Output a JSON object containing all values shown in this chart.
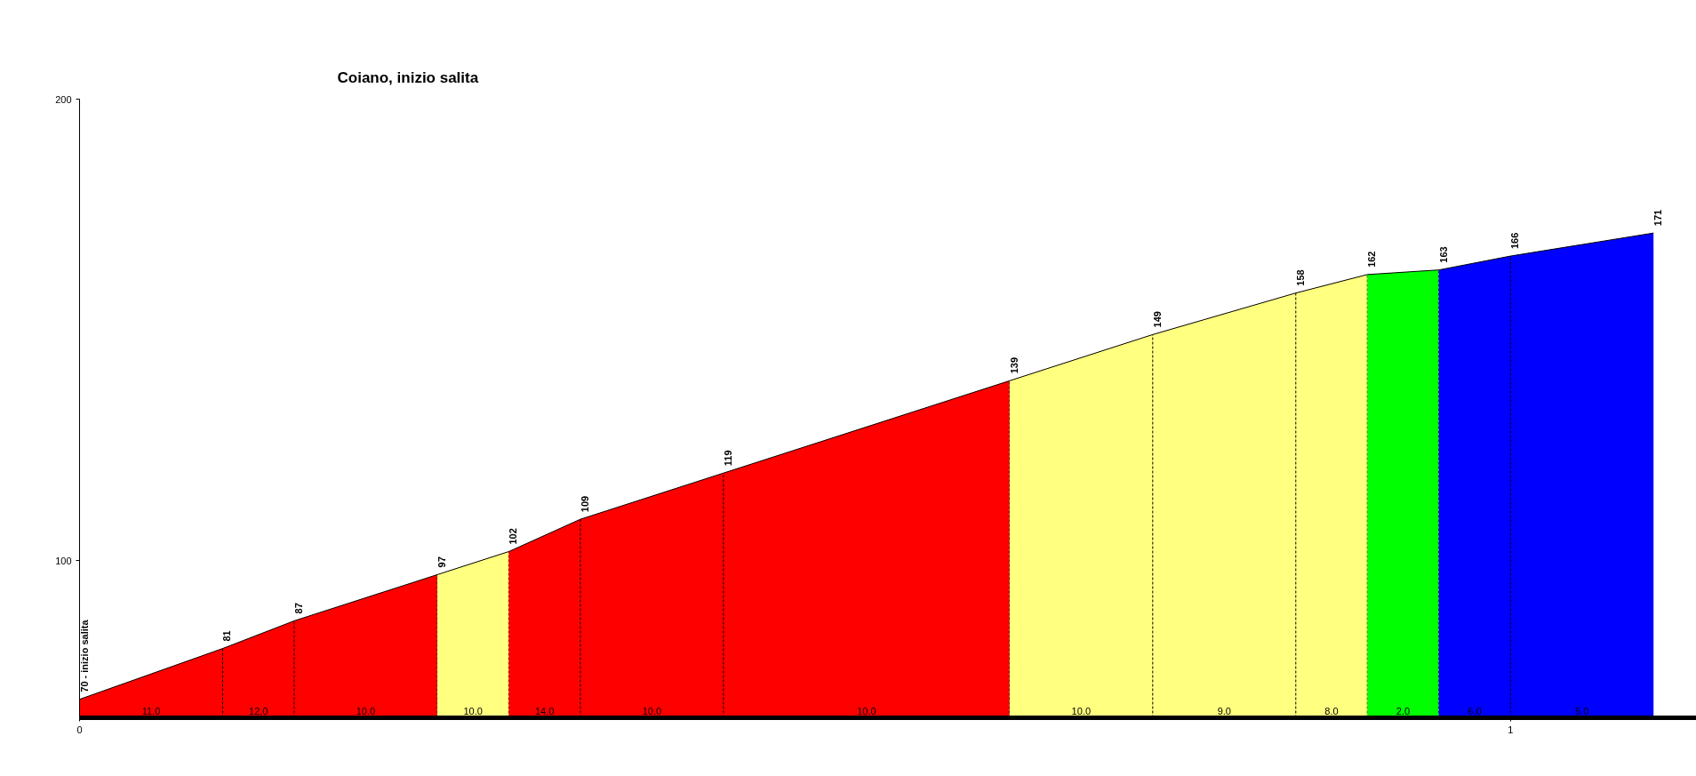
{
  "chart_data": {
    "type": "area",
    "title": "Coiano, inizio salita",
    "series": [
      {
        "color": "#ff0000",
        "x": [
          0,
          0.1,
          0.15,
          0.25
        ],
        "values": [
          70,
          81,
          87,
          97
        ],
        "value_labels": [
          "70 - inizio salita",
          "81",
          "87",
          "97"
        ]
      },
      {
        "color": "#ffff80",
        "x": [
          0.25,
          0.3
        ],
        "values": [
          97,
          102
        ],
        "value_labels": [
          null,
          "102"
        ]
      },
      {
        "color": "#ff0000",
        "x": [
          0.3,
          0.35,
          0.45,
          0.65
        ],
        "values": [
          102,
          109,
          119,
          139
        ],
        "value_labels": [
          null,
          "109",
          "119",
          "139"
        ]
      },
      {
        "color": "#ffff80",
        "x": [
          0.65,
          0.75,
          0.85,
          0.9
        ],
        "values": [
          139,
          149,
          158,
          162
        ],
        "value_labels": [
          null,
          "149",
          "158",
          "162"
        ]
      },
      {
        "color": "#00ff00",
        "x": [
          0.9,
          0.95
        ],
        "values": [
          162,
          163
        ],
        "value_labels": [
          null,
          "163"
        ]
      },
      {
        "color": "#0000ff",
        "x": [
          0.95,
          1.0,
          1.1
        ],
        "values": [
          163,
          166,
          171
        ],
        "value_labels": [
          null,
          "166",
          "171"
        ]
      }
    ],
    "annotations": [
      "11.0",
      "12.0",
      "10.0",
      "10.0",
      "14.0",
      "10.0",
      "10.0",
      "10.0",
      "9.0",
      "8.0",
      "2.0",
      "6.0",
      "5.0"
    ],
    "xlim": [
      0,
      1.13
    ],
    "xticks": [
      0,
      1
    ],
    "ylim": [
      66,
      200
    ],
    "yticks": [
      100,
      200
    ]
  }
}
